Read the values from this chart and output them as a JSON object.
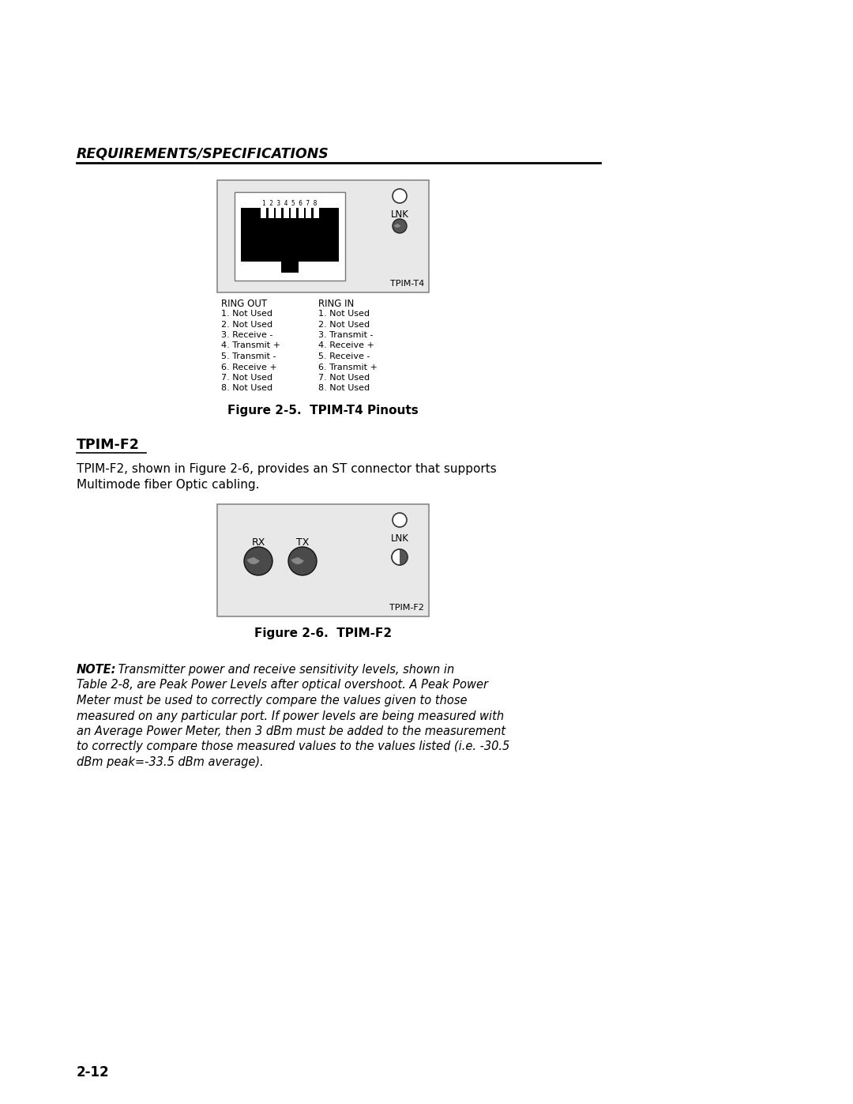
{
  "bg_color": "#ffffff",
  "section_title": "REQUIREMENTS/SPECIFICATIONS",
  "tpim_t4": {
    "figure_label": "Figure 2-5.  TPIM-T4 Pinouts",
    "ring_out_header": "RING OUT",
    "ring_in_header": "RING IN",
    "ring_out_lines": [
      "1. Not Used",
      "2. Not Used",
      "3. Receive -",
      "4. Transmit +",
      "5. Transmit -",
      "6. Receive +",
      "7. Not Used",
      "8. Not Used"
    ],
    "ring_in_lines": [
      "1. Not Used",
      "2. Not Used",
      "3. Transmit -",
      "4. Receive +",
      "5. Receive -",
      "6. Transmit +",
      "7. Not Used",
      "8. Not Used"
    ]
  },
  "tpim_f2": {
    "section_heading": "TPIM-F2",
    "body_text_line1": "TPIM-F2, shown in Figure 2-6, provides an ST connector that supports",
    "body_text_line2": "Multimode fiber Optic cabling.",
    "figure_label": "Figure 2-6.  TPIM-F2"
  },
  "note_lines": [
    "NOTE: Transmitter power and receive sensitivity levels, shown in",
    "Table 2-8, are Peak Power Levels after optical overshoot. A Peak Power",
    "Meter must be used to correctly compare the values given to those",
    "measured on any particular port. If power levels are being measured with",
    "an Average Power Meter, then 3 dBm must be added to the measurement",
    "to correctly compare those measured values to the values listed (i.e. -30.5",
    "dBm peak=-33.5 dBm average)."
  ],
  "page_number": "2-12"
}
